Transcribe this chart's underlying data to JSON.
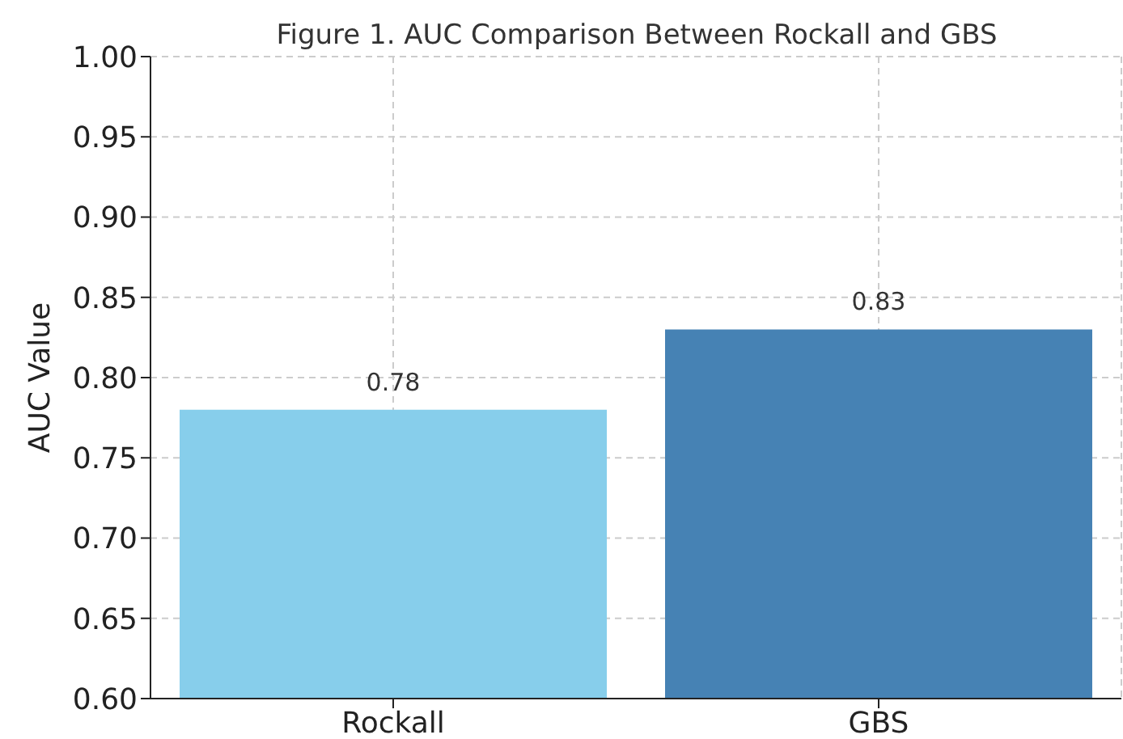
{
  "chart_data": {
    "type": "bar",
    "title": "Figure 1. AUC Comparison Between Rockall and GBS",
    "ylabel": "AUC Value",
    "categories": [
      "Rockall",
      "GBS"
    ],
    "values": [
      0.78,
      0.83
    ],
    "colors": [
      "#87ceeb",
      "#4682b4"
    ],
    "ylim": [
      0.6,
      1.0
    ],
    "yticks": [
      {
        "value": 0.6,
        "label": "0.60"
      },
      {
        "value": 0.65,
        "label": "0.65"
      },
      {
        "value": 0.7,
        "label": "0.70"
      },
      {
        "value": 0.75,
        "label": "0.75"
      },
      {
        "value": 0.8,
        "label": "0.80"
      },
      {
        "value": 0.85,
        "label": "0.85"
      },
      {
        "value": 0.9,
        "label": "0.90"
      },
      {
        "value": 0.95,
        "label": "0.95"
      },
      {
        "value": 1.0,
        "label": "1.00"
      }
    ],
    "grid": true,
    "data_labels": true
  }
}
